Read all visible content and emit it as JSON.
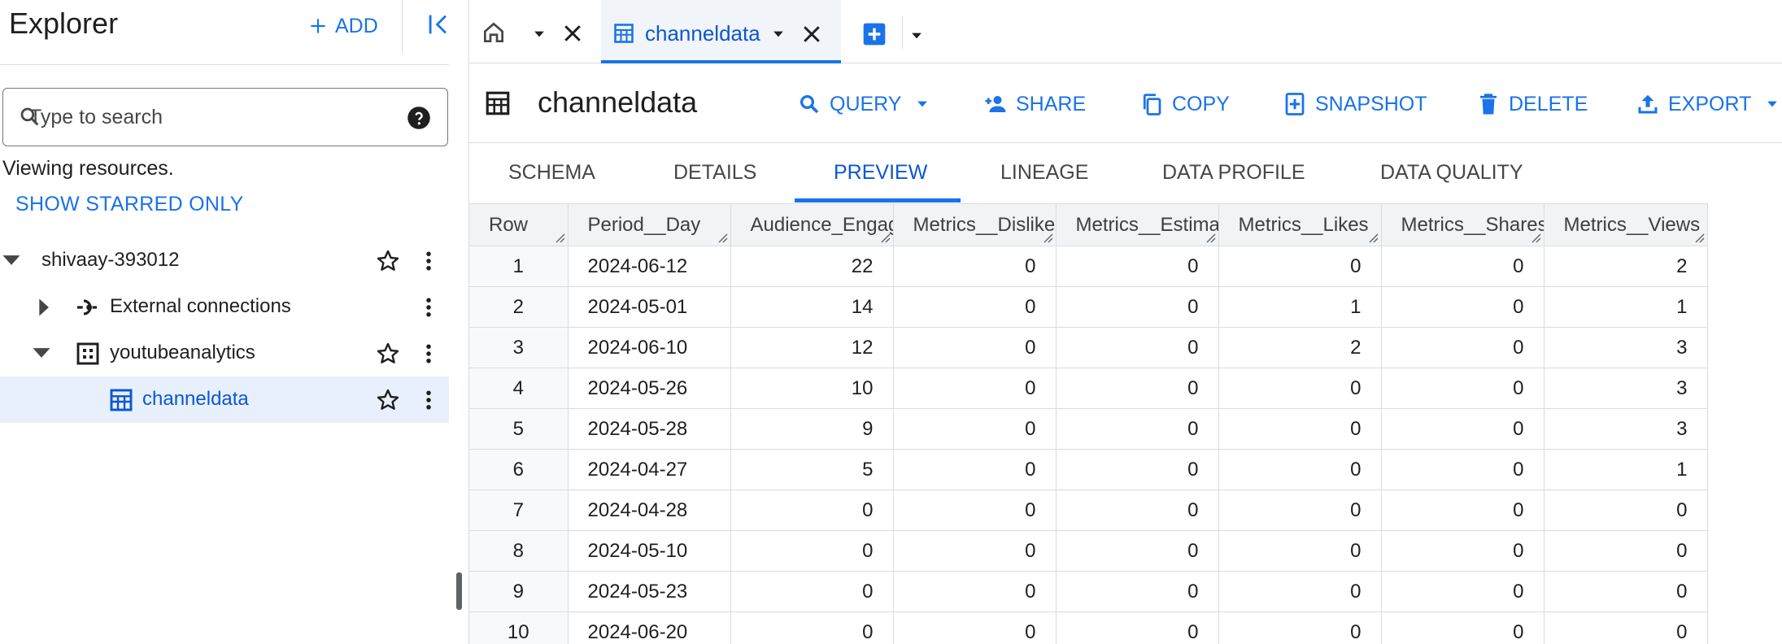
{
  "explorer": {
    "title": "Explorer",
    "add_label": "ADD",
    "search": {
      "placeholder": "Type to search"
    },
    "viewing_text": "Viewing resources.",
    "show_starred_label": "SHOW STARRED ONLY",
    "tree": {
      "project": "shivaay-393012",
      "external_connections": "External connections",
      "dataset": "youtubeanalytics",
      "table": "channeldata"
    }
  },
  "tabs": {
    "active_label": "channeldata"
  },
  "toolbar": {
    "title": "channeldata",
    "query_label": "QUERY",
    "share_label": "SHARE",
    "copy_label": "COPY",
    "snapshot_label": "SNAPSHOT",
    "delete_label": "DELETE",
    "export_label": "EXPORT"
  },
  "subtabs": [
    "SCHEMA",
    "DETAILS",
    "PREVIEW",
    "LINEAGE",
    "DATA PROFILE",
    "DATA QUALITY"
  ],
  "active_subtab": "PREVIEW",
  "table": {
    "columns": [
      "Row",
      "Period__Day",
      "Audience_Engag",
      "Metrics__Dislike",
      "Metrics__Estima",
      "Metrics__Likes",
      "Metrics__Shares",
      "Metrics__Views"
    ],
    "rows": [
      [
        "1",
        "2024-06-12",
        "22",
        "0",
        "0",
        "0",
        "0",
        "2"
      ],
      [
        "2",
        "2024-05-01",
        "14",
        "0",
        "0",
        "1",
        "0",
        "1"
      ],
      [
        "3",
        "2024-06-10",
        "12",
        "0",
        "0",
        "2",
        "0",
        "3"
      ],
      [
        "4",
        "2024-05-26",
        "10",
        "0",
        "0",
        "0",
        "0",
        "3"
      ],
      [
        "5",
        "2024-05-28",
        "9",
        "0",
        "0",
        "0",
        "0",
        "3"
      ],
      [
        "6",
        "2024-04-27",
        "5",
        "0",
        "0",
        "0",
        "0",
        "1"
      ],
      [
        "7",
        "2024-04-28",
        "0",
        "0",
        "0",
        "0",
        "0",
        "0"
      ],
      [
        "8",
        "2024-05-10",
        "0",
        "0",
        "0",
        "0",
        "0",
        "0"
      ],
      [
        "9",
        "2024-05-23",
        "0",
        "0",
        "0",
        "0",
        "0",
        "0"
      ],
      [
        "10",
        "2024-06-20",
        "0",
        "0",
        "0",
        "0",
        "0",
        "0"
      ]
    ]
  },
  "colors": {
    "accent": "#1a73e8",
    "selected_bg": "#e8f0fe",
    "selected_text": "#0b57d0"
  }
}
